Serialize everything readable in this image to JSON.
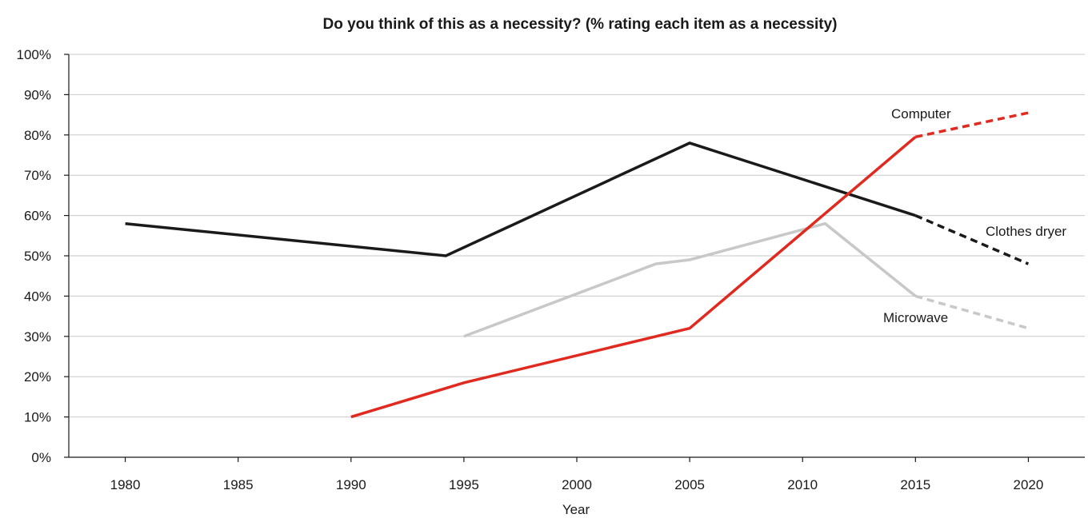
{
  "chart_data": {
    "type": "line",
    "title": "Do you think of this as a necessity? (% rating each item as a necessity)",
    "xlabel": "Year",
    "ylabel": "",
    "xlim": [
      1977.5,
      2022.5
    ],
    "ylim": [
      0,
      100
    ],
    "x_ticks": [
      "1980",
      "1985",
      "1990",
      "1995",
      "2000",
      "2005",
      "2010",
      "2015",
      "2020"
    ],
    "y_ticks": [
      "0%",
      "10%",
      "20%",
      "30%",
      "40%",
      "50%",
      "60%",
      "70%",
      "80%",
      "90%",
      "100%"
    ],
    "grid": true,
    "legend": "none",
    "series": [
      {
        "name": "Clothes dryer",
        "color": "#1a1a1a",
        "points": [
          [
            1980,
            58
          ],
          [
            1994.2,
            50
          ],
          [
            2005,
            78
          ],
          [
            2015,
            60
          ]
        ],
        "projected": [
          [
            2015,
            60
          ],
          [
            2020,
            48
          ]
        ]
      },
      {
        "name": "Microwave",
        "color": "#c8c8c8",
        "points": [
          [
            1995,
            30
          ],
          [
            2003.5,
            48
          ],
          [
            2005,
            49
          ],
          [
            2011,
            58
          ],
          [
            2015,
            40
          ]
        ],
        "projected": [
          [
            2015,
            40
          ],
          [
            2020,
            32
          ]
        ]
      },
      {
        "name": "Computer",
        "color": "#e02a20",
        "points": [
          [
            1990,
            10
          ],
          [
            1995,
            18.5
          ],
          [
            2005,
            32
          ],
          [
            2015,
            79.5
          ]
        ],
        "projected": [
          [
            2015,
            79.5
          ],
          [
            2020,
            85.5
          ]
        ]
      }
    ]
  }
}
